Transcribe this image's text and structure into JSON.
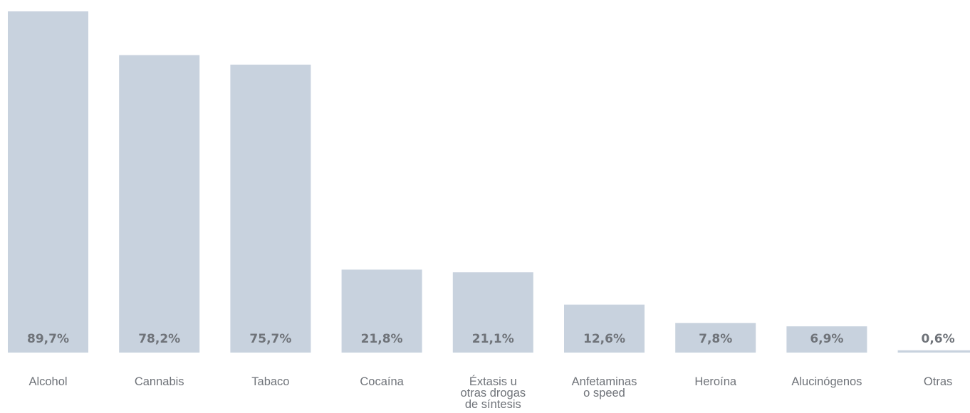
{
  "chart_data": {
    "type": "bar",
    "title": "",
    "xlabel": "",
    "ylabel": "",
    "ylim": [
      0,
      89.7
    ],
    "grid": false,
    "bar_color": "#c8d2de",
    "label_color": "#6f7379",
    "categories": [
      "Alcohol",
      "Cannabis",
      "Tabaco",
      "Cocaína",
      "Éxtasis u otras drogas de síntesis",
      "Anfetaminas o speed",
      "Heroína",
      "Alucinógenos",
      "Otras"
    ],
    "category_lines": [
      [
        "Alcohol"
      ],
      [
        "Cannabis"
      ],
      [
        "Tabaco"
      ],
      [
        "Cocaína"
      ],
      [
        "Éxtasis u",
        "otras drogas",
        "de síntesis"
      ],
      [
        "Anfetaminas",
        "o speed"
      ],
      [
        "Heroína"
      ],
      [
        "Alucinógenos"
      ],
      [
        "Otras"
      ]
    ],
    "values": [
      89.7,
      78.2,
      75.7,
      21.8,
      21.1,
      12.6,
      7.8,
      6.9,
      0.6
    ],
    "value_labels": [
      "89,7%",
      "78,2%",
      "75,7%",
      "21,8%",
      "21,1%",
      "12,6%",
      "7,8%",
      "6,9%",
      "0,6%"
    ]
  }
}
